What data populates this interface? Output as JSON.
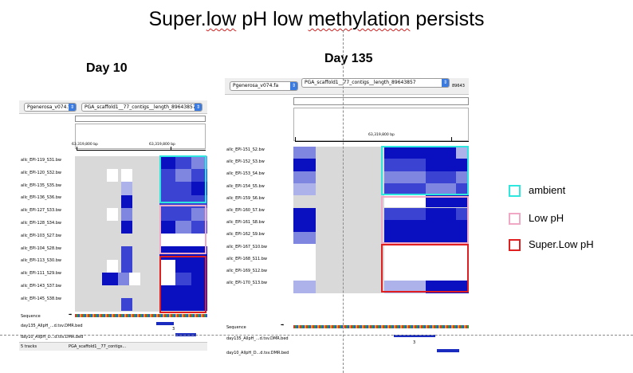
{
  "title": {
    "before": "Super.",
    "mid_flagged": "low",
    "after_plain": " pH low ",
    "last_flagged": "methylation",
    "tail": " persists"
  },
  "days": {
    "day10": "Day 10",
    "day135": "Day 135"
  },
  "colors": {
    "ambient": "#2ee8e0",
    "low_ph": "#f0a8c4",
    "super_low_ph": "#e02020",
    "heat_bg": "#d9d9d9",
    "meth_dark": "#0a10c0"
  },
  "legend": {
    "ambient": "ambient",
    "low_ph": "Low pH",
    "super_low_ph": "Super.Low pH"
  },
  "panel_left": {
    "genome_select": "Pgenerosa_v074.fa",
    "locus_select": "PGA_scaffold1__77_contigs__length_89643857",
    "coord_a": "63,319,800 bp",
    "coord_b": "63,319,800 bp",
    "tracks": [
      "allc_EPI-119_S31.bw",
      "allc_EPI-120_S32.bw",
      "allc_EPI-135_S35.bw",
      "allc_EPI-136_S36.bw",
      "allc_EPI-127_S33.bw",
      "allc_EPI-128_S34.bw",
      "allc_EPI-103_S27.bw",
      "allc_EPI-104_S28.bw",
      "allc_EPI-113_S30.bw",
      "allc_EPI-111_S29.bw",
      "allc_EPI-143_S37.bw",
      "allc_EPI-145_S38.bw"
    ],
    "sequence_label": "Sequence",
    "bed1": "day135_AllpH_...d.tsv.DMR.bed",
    "bed2": "day10_AllpH_D...d.tsv.DMR.bed",
    "bed_num": "3",
    "footer_tracks": "5 tracks",
    "footer_locus": "PGA_scaffold1__77_contigs..."
  },
  "panel_right": {
    "genome_select": "Pgenerosa_v074.fa",
    "locus_select": "PGA_scaffold1__77_contigs__length_89643857",
    "locus_cut": "89643",
    "coord": "63,319,800 bp",
    "tracks": [
      "allc_EPI-151_S2.bw",
      "allc_EPI-152_S3.bw",
      "allc_EPI-153_S4.bw",
      "allc_EPI-154_S5.bw",
      "allc_EPI-159_S6.bw",
      "allc_EPI-160_S7.bw",
      "allc_EPI-161_S8.bw",
      "allc_EPI-162_S9.bw",
      "allc_EPI-167_S10.bw",
      "allc_EPI-168_S11.bw",
      "allc_EPI-169_S12.bw",
      "allc_EPI-170_S13.bw"
    ],
    "sequence_label": "Sequence",
    "bed1": "day135_AllpH_...d.tsv.DMR.bed",
    "bed2": "day10_AllpH_D...d.tsv.DMR.bed",
    "bed_num": "3"
  }
}
